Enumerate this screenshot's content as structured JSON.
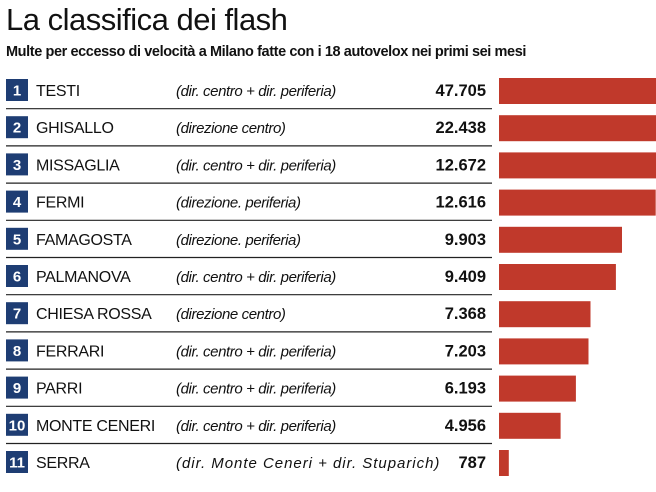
{
  "title": "La classifica dei flash",
  "subtitle": "Multe per eccesso di velocità a Milano fatte con i 18 autovelox nei primi sei mesi",
  "colors": {
    "bar": "#c0392b",
    "rank_box": "#1e3d73"
  },
  "chart_data": {
    "type": "bar",
    "orientation": "horizontal",
    "categories": [
      "TESTI",
      "GHISALLO",
      "MISSAGLIA",
      "FERMI",
      "FAMAGOSTA",
      "PALMANOVA",
      "CHIESA ROSSA",
      "FERRARI",
      "PARRI",
      "MONTE CENERI",
      "SERRA"
    ],
    "ranks": [
      "1",
      "2",
      "3",
      "4",
      "5",
      "6",
      "7",
      "8",
      "9",
      "10",
      "11"
    ],
    "directions": [
      "(dir. centro + dir. periferia)",
      "(direzione centro)",
      "(dir. centro + dir. periferia)",
      "(direzione. periferia)",
      "(direzione. periferia)",
      "(dir. centro + dir. periferia)",
      "(direzione centro)",
      "(dir. centro + dir. periferia)",
      "(dir. centro + dir. periferia)",
      "(dir. centro + dir. periferia)",
      "(dir. Monte Ceneri + dir. Stuparich)"
    ],
    "value_labels": [
      "47.705",
      "22.438",
      "12.672",
      "12.616",
      "9.903",
      "9.409",
      "7.368",
      "7.203",
      "6.193",
      "4.956",
      "787"
    ],
    "values": [
      47705,
      22438,
      12672,
      12616,
      9903,
      9409,
      7368,
      7203,
      6193,
      4956,
      787
    ]
  }
}
